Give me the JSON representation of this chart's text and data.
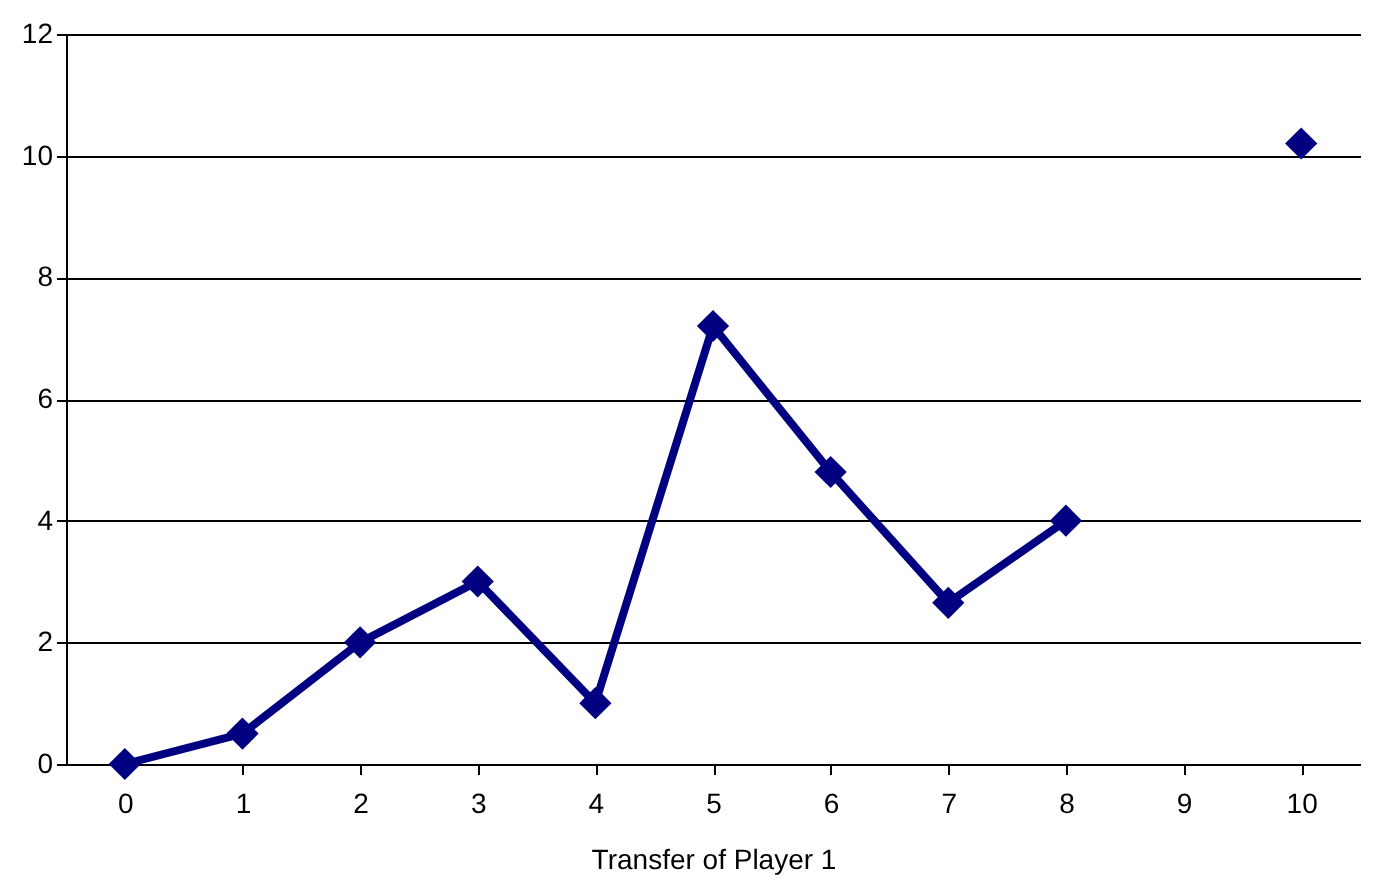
{
  "chart_data": {
    "type": "line",
    "xlabel": "Transfer of Player 1",
    "categories": [
      "0",
      "1",
      "2",
      "3",
      "4",
      "5",
      "6",
      "7",
      "8",
      "9",
      "10"
    ],
    "series": [
      {
        "color": "#000080",
        "values": [
          0,
          0.5,
          2,
          3,
          1,
          7.2,
          4.8,
          2.65,
          4,
          null,
          10.2
        ]
      }
    ],
    "ylim": [
      0,
      12
    ],
    "yticks": [
      0,
      2,
      4,
      6,
      8,
      10,
      12
    ],
    "grid": "y",
    "marker": "diamond",
    "line_style": "solid"
  }
}
